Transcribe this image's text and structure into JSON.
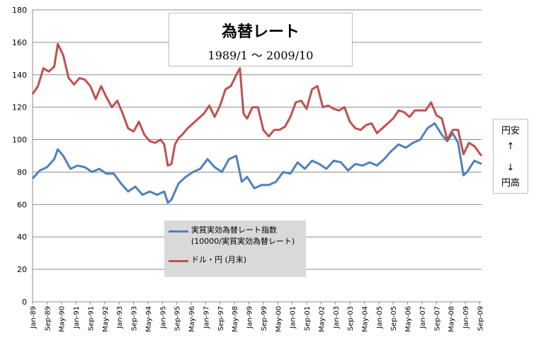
{
  "title": "為替レート",
  "subtitle": "1989/1 〜 2009/10",
  "side_note": {
    "top": "円安",
    "arrow_up": "↑",
    "arrow_down": "↓",
    "bottom": "円高"
  },
  "chart_data": {
    "type": "line",
    "ylim": [
      0,
      180
    ],
    "y_ticks": [
      0,
      20,
      40,
      60,
      80,
      100,
      120,
      140,
      160,
      180
    ],
    "x_tick_labels": [
      "Jan-89",
      "Sep-89",
      "May-90",
      "Jan-91",
      "Sep-91",
      "May-92",
      "Jan-93",
      "Sep-93",
      "May-94",
      "Jan-95",
      "Sep-95",
      "May-96",
      "Jan-97",
      "Sep-97",
      "May-98",
      "Jan-99",
      "Sep-99",
      "May-00",
      "Jan-01",
      "Sep-01",
      "May-02",
      "Jan-03",
      "Sep-03",
      "May-04",
      "Jan-05",
      "Sep-05",
      "May-06",
      "Jan-07",
      "Sep-07",
      "May-08",
      "Jan-09",
      "Sep-09"
    ],
    "grid": true,
    "legend": "center-left",
    "series": [
      {
        "name": "実質実効為替レート指数",
        "name_line2": "(10000/実質実効為替レート)",
        "color": "#4f81bd",
        "x": [
          "1989-01",
          "1989-05",
          "1989-09",
          "1990-01",
          "1990-03",
          "1990-06",
          "1990-10",
          "1991-02",
          "1991-06",
          "1991-10",
          "1992-02",
          "1992-06",
          "1992-10",
          "1993-02",
          "1993-06",
          "1993-10",
          "1994-02",
          "1994-06",
          "1994-10",
          "1995-02",
          "1995-04",
          "1995-06",
          "1995-10",
          "1996-02",
          "1996-06",
          "1996-10",
          "1997-02",
          "1997-06",
          "1997-10",
          "1998-02",
          "1998-06",
          "1998-09",
          "1998-12",
          "1999-04",
          "1999-08",
          "1999-12",
          "2000-04",
          "2000-08",
          "2000-12",
          "2001-04",
          "2001-08",
          "2001-12",
          "2002-04",
          "2002-08",
          "2002-12",
          "2003-04",
          "2003-08",
          "2003-12",
          "2004-04",
          "2004-08",
          "2004-12",
          "2005-04",
          "2005-08",
          "2005-12",
          "2006-04",
          "2006-08",
          "2006-12",
          "2007-04",
          "2007-08",
          "2007-12",
          "2008-03",
          "2008-06",
          "2008-09",
          "2008-12",
          "2009-02",
          "2009-06",
          "2009-10"
        ],
        "values": [
          76,
          81,
          83,
          88,
          94,
          90,
          82,
          84,
          83,
          80,
          82,
          79,
          79,
          73,
          68,
          71,
          66,
          68,
          66,
          68,
          61,
          63,
          73,
          77,
          80,
          82,
          88,
          83,
          80,
          88,
          90,
          74,
          77,
          70,
          72,
          72,
          74,
          80,
          79,
          86,
          82,
          87,
          85,
          82,
          87,
          86,
          81,
          85,
          84,
          86,
          84,
          88,
          93,
          97,
          95,
          98,
          100,
          107,
          110,
          103,
          99,
          104,
          98,
          78,
          80,
          87,
          85
        ]
      },
      {
        "name": "ドル・円 (月末)",
        "color": "#c0504d",
        "x": [
          "1989-01",
          "1989-04",
          "1989-07",
          "1989-10",
          "1990-01",
          "1990-03",
          "1990-06",
          "1990-09",
          "1990-12",
          "1991-03",
          "1991-06",
          "1991-09",
          "1991-12",
          "1992-03",
          "1992-06",
          "1992-09",
          "1992-12",
          "1993-03",
          "1993-06",
          "1993-09",
          "1993-12",
          "1994-03",
          "1994-06",
          "1994-09",
          "1994-12",
          "1995-02",
          "1995-04",
          "1995-06",
          "1995-08",
          "1995-10",
          "1995-12",
          "1996-03",
          "1996-06",
          "1996-09",
          "1996-12",
          "1997-03",
          "1997-06",
          "1997-09",
          "1997-12",
          "1998-03",
          "1998-06",
          "1998-08",
          "1998-10",
          "1998-12",
          "1999-03",
          "1999-06",
          "1999-09",
          "1999-12",
          "2000-03",
          "2000-06",
          "2000-09",
          "2000-12",
          "2001-03",
          "2001-06",
          "2001-09",
          "2001-12",
          "2002-03",
          "2002-06",
          "2002-09",
          "2002-12",
          "2003-03",
          "2003-06",
          "2003-09",
          "2003-12",
          "2004-03",
          "2004-06",
          "2004-09",
          "2004-12",
          "2005-03",
          "2005-06",
          "2005-09",
          "2005-12",
          "2006-03",
          "2006-06",
          "2006-09",
          "2006-12",
          "2007-03",
          "2007-06",
          "2007-09",
          "2007-12",
          "2008-03",
          "2008-06",
          "2008-09",
          "2008-12",
          "2009-03",
          "2009-06",
          "2009-10"
        ],
        "values": [
          128,
          133,
          144,
          142,
          145,
          159,
          152,
          138,
          134,
          138,
          137,
          133,
          125,
          133,
          126,
          120,
          124,
          116,
          107,
          105,
          111,
          103,
          99,
          98,
          100,
          97,
          84,
          85,
          97,
          101,
          103,
          107,
          110,
          113,
          116,
          121,
          114,
          121,
          131,
          133,
          140,
          144,
          116,
          113,
          120,
          120,
          106,
          102,
          106,
          106,
          108,
          114,
          123,
          124,
          119,
          131,
          133,
          120,
          121,
          119,
          118,
          120,
          111,
          107,
          106,
          109,
          110,
          104,
          107,
          110,
          113,
          118,
          117,
          114,
          118,
          118,
          118,
          123,
          115,
          113,
          100,
          106,
          106,
          91,
          98,
          96,
          90
        ]
      }
    ]
  }
}
